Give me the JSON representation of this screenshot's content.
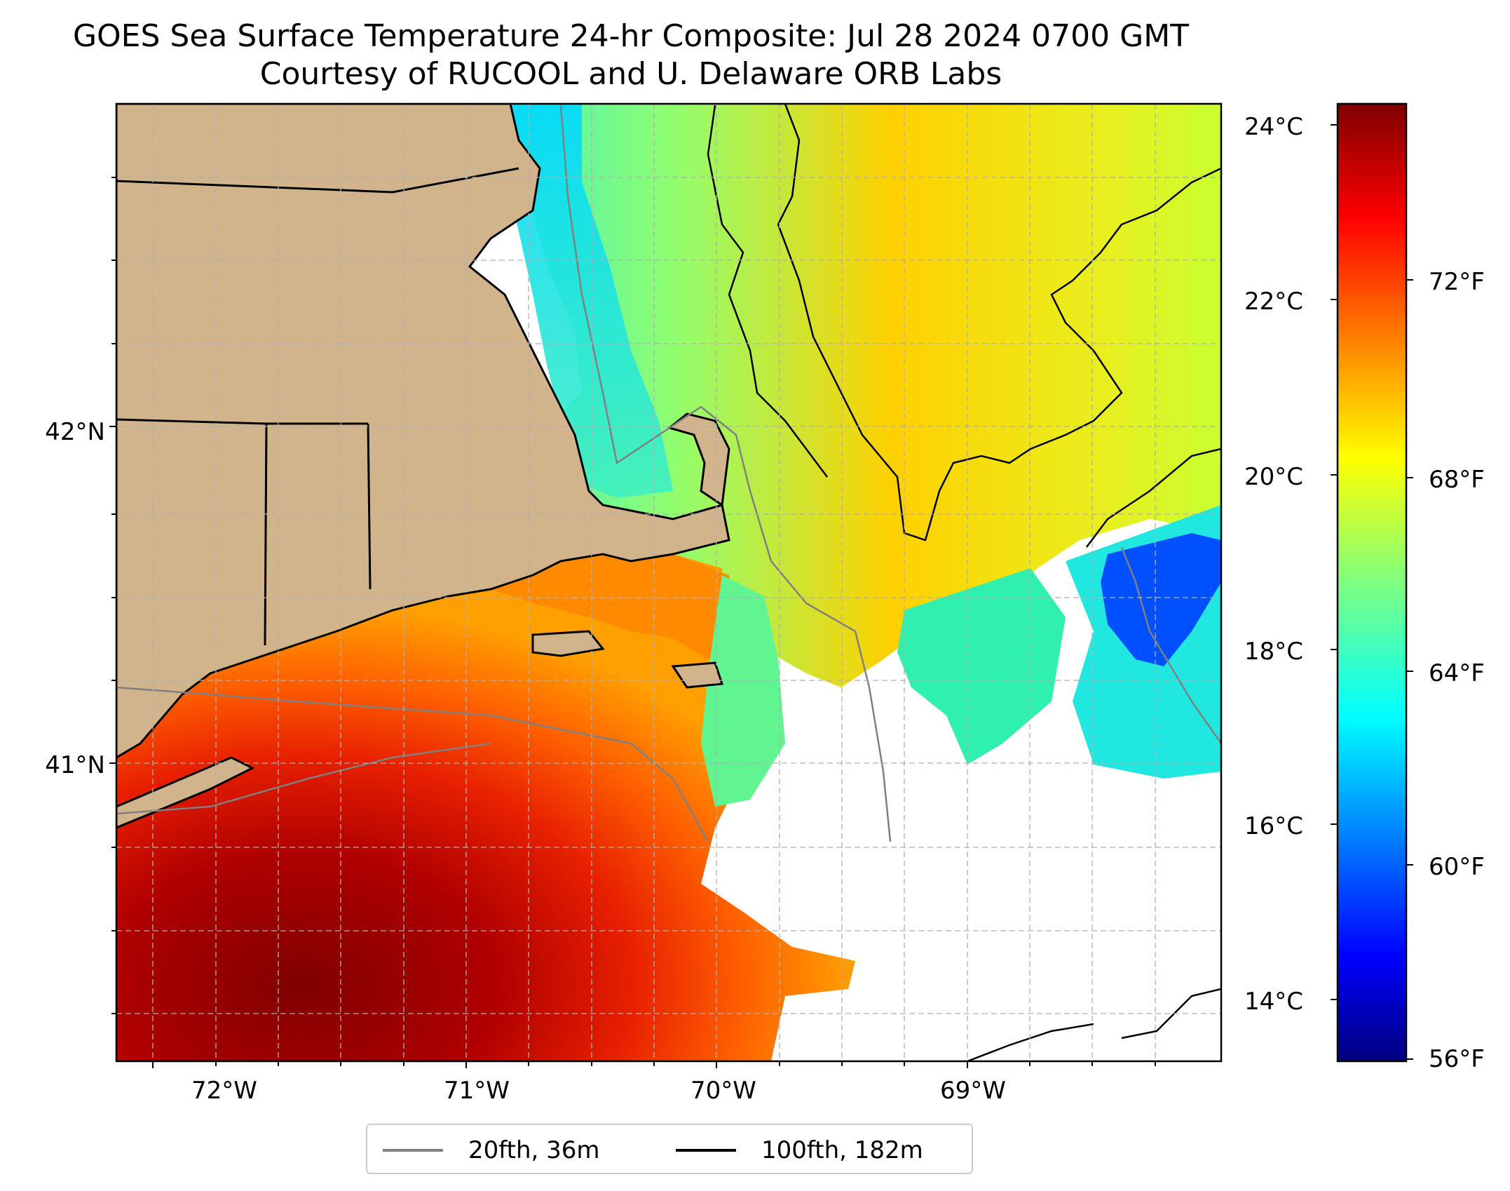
{
  "title": {
    "line1": "GOES Sea Surface Temperature 24-hr Composite: Jul 28 2024 0700 GMT",
    "line2": "Courtesy of RUCOOL and U. Delaware ORB Labs"
  },
  "map": {
    "x_ticks": [
      "72°W",
      "71°W",
      "70°W",
      "69°W"
    ],
    "y_ticks": [
      "42°N",
      "41°N"
    ],
    "gridlines": true,
    "colors": {
      "land": "#D2B48C",
      "no_data": "#FFFFFF",
      "coastline": "#000000",
      "isobath_20fth": "#808080",
      "isobath_100fth": "#000000",
      "grid": "#B0B0B0"
    }
  },
  "colorbar": {
    "colormap": "jet",
    "celsius_ticks": [
      "24°C",
      "22°C",
      "20°C",
      "18°C",
      "16°C",
      "14°C"
    ],
    "fahrenheit_ticks": [
      "72°F",
      "68°F",
      "64°F",
      "60°F",
      "56°F"
    ]
  },
  "legend": {
    "items": [
      {
        "label": "20fth, 36m",
        "color": "#808080"
      },
      {
        "label": "100fth, 182m",
        "color": "#000000"
      }
    ],
    "placement": "bottom-center"
  }
}
